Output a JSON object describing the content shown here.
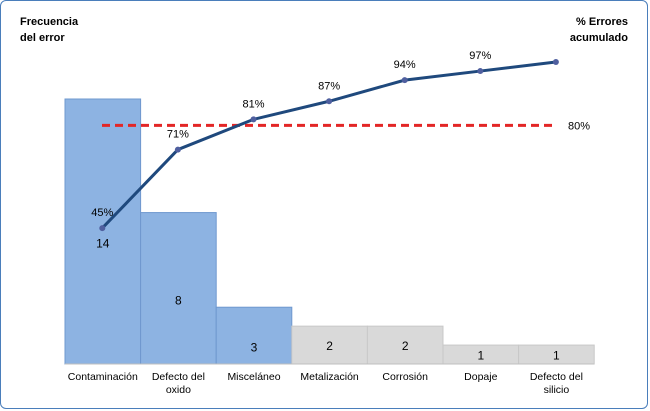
{
  "chart_data": {
    "type": "bar",
    "left_axis_title": [
      "Frecuencia",
      "del error"
    ],
    "right_axis_title": [
      "% Errores",
      "acumulado"
    ],
    "categories": [
      [
        "Contaminación"
      ],
      [
        "Defecto del",
        "oxido"
      ],
      [
        "Misceláneo"
      ],
      [
        "Metalización"
      ],
      [
        "Corrosión"
      ],
      [
        "Dopaje"
      ],
      [
        "Defecto del",
        "silicio"
      ]
    ],
    "values": [
      14,
      8,
      3,
      2,
      2,
      1,
      1
    ],
    "value_labels": [
      "14",
      "8",
      "3",
      "2",
      "2",
      "1",
      "1"
    ],
    "cumulative_percent": [
      45,
      71,
      81,
      87,
      94,
      97,
      100
    ],
    "cumulative_labels": [
      "45%",
      "71%",
      "81%",
      "87%",
      "94%",
      "97%",
      ""
    ],
    "threshold_percent": 80,
    "threshold_label": "80%",
    "vital_few_count": 3,
    "colors": {
      "bar_vital": "#8db3e2",
      "bar_vital_edge": "#6f98cf",
      "bar_trivial": "#d9d9d9",
      "bar_trivial_edge": "#c8c8c8",
      "line": "#1f497d",
      "marker": "#4f5f9f",
      "threshold": "#e32626",
      "frame": "#4a7ebb"
    }
  }
}
